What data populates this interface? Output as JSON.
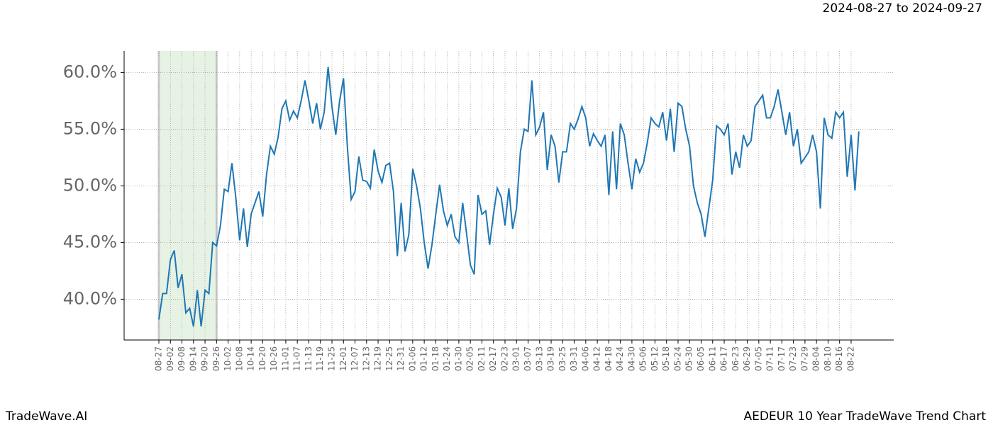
{
  "header": {
    "date_range": "2024-08-27 to 2024-09-27"
  },
  "footer": {
    "brand": "TradeWave.AI",
    "chart_name": "AEDEUR 10 Year TradeWave Trend Chart"
  },
  "chart_data": {
    "type": "line",
    "categories": [
      "08-27",
      null,
      null,
      "09-02",
      null,
      null,
      "09-08",
      null,
      null,
      "09-14",
      null,
      null,
      "09-20",
      null,
      null,
      "09-26",
      null,
      null,
      "10-02",
      null,
      null,
      "10-08",
      null,
      null,
      "10-14",
      null,
      null,
      "10-20",
      null,
      null,
      "10-26",
      null,
      null,
      "11-01",
      null,
      null,
      "11-07",
      null,
      null,
      "11-13",
      null,
      null,
      "11-19",
      null,
      null,
      "11-25",
      null,
      null,
      "12-01",
      null,
      null,
      "12-07",
      null,
      null,
      "12-13",
      null,
      null,
      "12-19",
      null,
      null,
      "12-25",
      null,
      null,
      "12-31",
      null,
      null,
      "01-06",
      null,
      null,
      "01-12",
      null,
      null,
      "01-18",
      null,
      null,
      "01-24",
      null,
      null,
      "01-30",
      null,
      null,
      "02-05",
      null,
      null,
      "02-11",
      null,
      null,
      "02-17",
      null,
      null,
      "02-23",
      null,
      null,
      "03-01",
      null,
      null,
      "03-07",
      null,
      null,
      "03-13",
      null,
      null,
      "03-19",
      null,
      null,
      "03-25",
      null,
      null,
      "03-31",
      null,
      null,
      "04-06",
      null,
      null,
      "04-12",
      null,
      null,
      "04-18",
      null,
      null,
      "04-24",
      null,
      null,
      "04-30",
      null,
      null,
      "05-06",
      null,
      null,
      "05-12",
      null,
      null,
      "05-18",
      null,
      null,
      "05-24",
      null,
      null,
      "05-30",
      null,
      null,
      "06-05",
      null,
      null,
      "06-11",
      null,
      null,
      "06-17",
      null,
      null,
      "06-23",
      null,
      null,
      "06-29",
      null,
      null,
      "07-05",
      null,
      null,
      "07-11",
      null,
      null,
      "07-17",
      null,
      null,
      "07-23",
      null,
      null,
      "07-29",
      null,
      null,
      "08-04",
      null,
      null,
      "08-10",
      null,
      null,
      "08-16",
      null,
      null,
      "08-22",
      null,
      null
    ],
    "series": [
      {
        "color": "#1f77b4",
        "values": [
          38.2,
          40.5,
          40.5,
          43.5,
          44.3,
          41.0,
          42.2,
          38.8,
          39.2,
          37.6,
          40.8,
          37.6,
          40.8,
          40.5,
          45.0,
          44.7,
          46.5,
          49.7,
          49.5,
          52.0,
          49.0,
          45.2,
          48.0,
          44.6,
          47.5,
          48.5,
          49.5,
          47.3,
          51.0,
          53.5,
          52.8,
          54.3,
          56.8,
          57.5,
          55.8,
          56.6,
          56.0,
          57.5,
          59.3,
          57.5,
          55.5,
          57.3,
          55.0,
          56.5,
          60.5,
          57.0,
          54.5,
          57.5,
          59.5,
          53.5,
          48.8,
          49.5,
          52.6,
          50.5,
          50.4,
          49.8,
          53.2,
          51.3,
          50.3,
          51.8,
          52.0,
          49.5,
          43.8,
          48.5,
          44.2,
          45.7,
          51.5,
          50.0,
          48.0,
          45.0,
          42.7,
          44.8,
          47.5,
          50.1,
          47.8,
          46.5,
          47.5,
          45.5,
          45.0,
          48.5,
          45.8,
          43.0,
          42.2,
          49.2,
          47.5,
          47.8,
          44.8,
          47.5,
          49.8,
          49.0,
          46.5,
          49.8,
          46.2,
          48.0,
          53.0,
          55.0,
          54.8,
          59.3,
          54.5,
          55.2,
          56.5,
          51.4,
          54.5,
          53.5,
          50.3,
          53.0,
          53.0,
          55.5,
          55.0,
          55.9,
          57.0,
          56.0,
          53.5,
          54.6,
          54.0,
          53.5,
          54.5,
          49.2,
          54.8,
          49.7,
          55.5,
          54.5,
          52.0,
          49.7,
          52.4,
          51.2,
          52.0,
          53.8,
          56.0,
          55.5,
          55.2,
          56.5,
          54.0,
          56.8,
          53.0,
          57.3,
          57.0,
          55.0,
          53.5,
          50.0,
          48.5,
          47.5,
          45.5,
          48.0,
          50.5,
          55.3,
          55.0,
          54.5,
          55.5,
          51.0,
          53.0,
          51.6,
          54.5,
          53.5,
          54.0,
          57.0,
          57.5,
          58.0,
          56.0,
          56.0,
          57.0,
          58.5,
          56.5,
          54.5,
          56.5,
          53.5,
          55.0,
          52.0,
          52.5,
          53.0,
          54.5,
          53.0,
          48.0,
          56.0,
          54.5,
          54.2,
          56.5,
          56.0,
          56.5,
          50.8,
          54.5,
          49.6,
          54.8
        ]
      }
    ],
    "ylim": [
      36.4,
      61.9
    ],
    "yticks": [
      {
        "value": 40,
        "label": "40.0%"
      },
      {
        "value": 45,
        "label": "45.0%"
      },
      {
        "value": 50,
        "label": "50.0%"
      },
      {
        "value": 55,
        "label": "55.0%"
      },
      {
        "value": 60,
        "label": "60.0%"
      }
    ],
    "grid": true,
    "highlight": [
      "08-27",
      "09-26"
    ],
    "highlight_color": "#e6f2e3"
  }
}
